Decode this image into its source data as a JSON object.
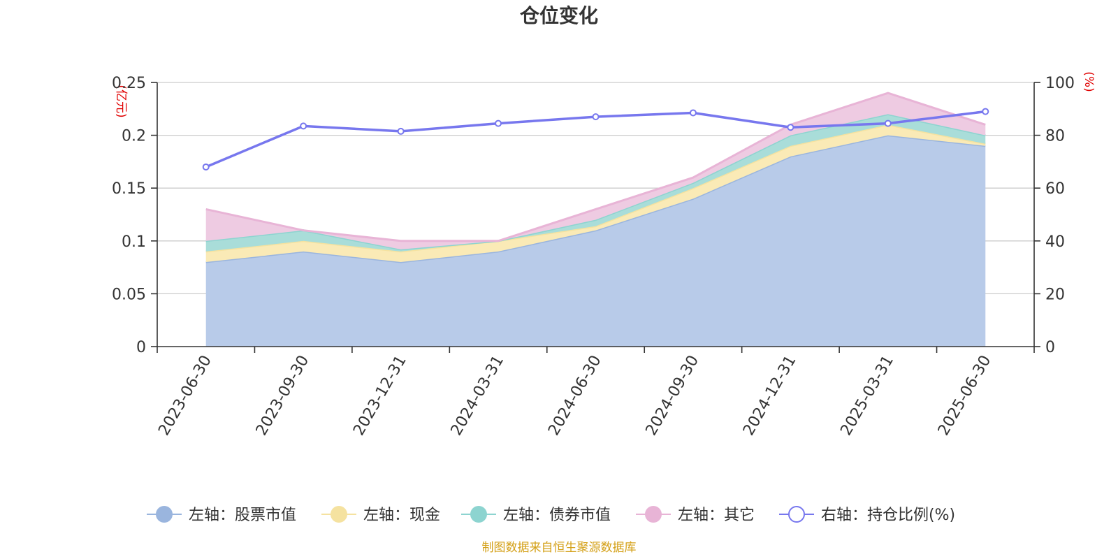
{
  "chart_data": {
    "type": "area",
    "title": "仓位变化",
    "categories": [
      "2023-06-30",
      "2023-09-30",
      "2023-12-31",
      "2024-03-31",
      "2024-06-30",
      "2024-09-30",
      "2024-12-31",
      "2025-03-31",
      "2025-06-30"
    ],
    "left_axis": {
      "unit": "(亿元)",
      "ylim": [
        0,
        0.25
      ],
      "ticks": [
        "0",
        "0.05",
        "0.1",
        "0.15",
        "0.2",
        "0.25"
      ]
    },
    "right_axis": {
      "unit": "(%)",
      "ylim": [
        0,
        100
      ],
      "ticks": [
        "0",
        "20",
        "40",
        "60",
        "80",
        "100"
      ]
    },
    "stacked": true,
    "grid": true,
    "series": [
      {
        "name": "左轴：股票市值",
        "axis": "left",
        "type": "area",
        "color": "#9ab5de",
        "fill": "#b8cbe9",
        "values": [
          0.08,
          0.09,
          0.08,
          0.09,
          0.11,
          0.14,
          0.18,
          0.2,
          0.19
        ]
      },
      {
        "name": "左轴：现金",
        "axis": "left",
        "type": "area",
        "color": "#f5e2a0",
        "fill": "#faeab6",
        "values": [
          0.01,
          0.01,
          0.01,
          0.01,
          0.004,
          0.01,
          0.01,
          0.01,
          0.002
        ]
      },
      {
        "name": "左轴：债券市值",
        "axis": "left",
        "type": "area",
        "color": "#8dd4d0",
        "fill": "#a9ddd9",
        "values": [
          0.01,
          0.01,
          0.002,
          0.0,
          0.006,
          0.005,
          0.01,
          0.01,
          0.008
        ]
      },
      {
        "name": "左轴：其它",
        "axis": "left",
        "type": "area",
        "color": "#e8b4d6",
        "fill": "#eecbe2",
        "values": [
          0.03,
          0.0,
          0.008,
          0.0,
          0.01,
          0.005,
          0.01,
          0.02,
          0.01
        ]
      },
      {
        "name": "右轴：持仓比例(%)",
        "axis": "right",
        "type": "line",
        "color": "#7777ee",
        "values": [
          68,
          83.5,
          81.5,
          84.5,
          87,
          88.5,
          83,
          84.5,
          89
        ]
      }
    ],
    "legend_position": "bottom"
  },
  "source_note": "制图数据来自恒生聚源数据库"
}
